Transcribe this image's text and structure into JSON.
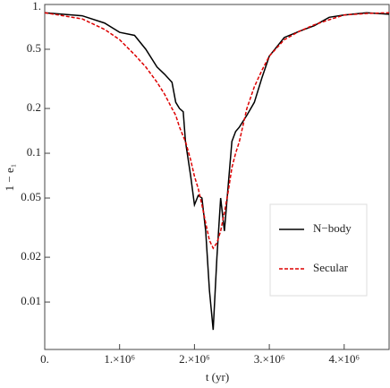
{
  "chart_data": {
    "type": "line",
    "x_label": "t (yr)",
    "y_label": "1 − e₁",
    "x": [
      0,
      500000,
      800000,
      1000000,
      1200000,
      1350000,
      1500000,
      1600000,
      1700000,
      1750000,
      1800000,
      1850000,
      1880000,
      1950000,
      2000000,
      2050000,
      2100000,
      2150000,
      2200000,
      2250000,
      2300000,
      2350000,
      2400000,
      2450000,
      2500000,
      2550000,
      2600000,
      2700000,
      2800000,
      2900000,
      3000000,
      3200000,
      3400000,
      3600000,
      3800000,
      4000000,
      4300000,
      4600000
    ],
    "series": [
      {
        "name": "N−body",
        "color": "#000000",
        "dash": false,
        "values": [
          0.88,
          0.84,
          0.75,
          0.65,
          0.62,
          0.5,
          0.38,
          0.34,
          0.3,
          0.22,
          0.2,
          0.19,
          0.12,
          0.07,
          0.045,
          0.052,
          0.05,
          0.03,
          0.012,
          0.0065,
          0.02,
          0.05,
          0.03,
          0.06,
          0.12,
          0.14,
          0.15,
          0.18,
          0.22,
          0.32,
          0.45,
          0.6,
          0.66,
          0.72,
          0.82,
          0.85,
          0.88,
          0.86
        ]
      },
      {
        "name": "Secular",
        "color": "#dd0000",
        "dash": true,
        "values": [
          0.88,
          0.8,
          0.68,
          0.58,
          0.46,
          0.38,
          0.3,
          0.25,
          0.2,
          0.18,
          0.15,
          0.13,
          0.12,
          0.09,
          0.07,
          0.058,
          0.045,
          0.034,
          0.026,
          0.023,
          0.025,
          0.03,
          0.04,
          0.055,
          0.08,
          0.1,
          0.12,
          0.2,
          0.28,
          0.36,
          0.45,
          0.58,
          0.66,
          0.73,
          0.79,
          0.85,
          0.87,
          0.88
        ]
      }
    ],
    "xlim": [
      0,
      4600000
    ],
    "ylim": [
      0.0048,
      1
    ],
    "log_y": true,
    "xticks": [
      {
        "value": 0,
        "label": "0."
      },
      {
        "value": 1000000,
        "label": "1.×10⁶"
      },
      {
        "value": 2000000,
        "label": "2.×10⁶"
      },
      {
        "value": 3000000,
        "label": "3.×10⁶"
      },
      {
        "value": 4000000,
        "label": "4.×10⁶"
      }
    ],
    "yticks": [
      0.01,
      0.02,
      0.05,
      0.1,
      0.2,
      0.5,
      {
        "value": 1,
        "label": "1."
      }
    ],
    "legend": "right"
  }
}
